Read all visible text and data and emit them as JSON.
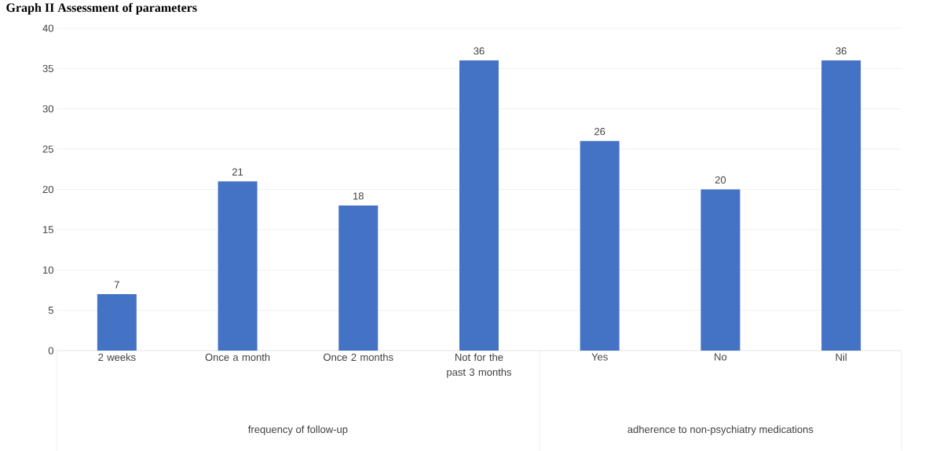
{
  "chart_data": {
    "type": "bar",
    "title": "Graph II Assessment of parameters",
    "categories": [
      "2 weeks",
      "Once a month",
      "Once 2 months",
      "Not for the past 3 months",
      "Yes",
      "No",
      "Nil"
    ],
    "values": [
      7,
      21,
      18,
      36,
      26,
      20,
      36
    ],
    "color": "#4472c4",
    "ylim": [
      0,
      40
    ],
    "yticks": [
      0,
      5,
      10,
      15,
      20,
      25,
      30,
      35,
      40
    ],
    "grid": "y",
    "data_labels": true,
    "annotations": [
      "frequency of follow-up",
      "adherence to non-psychiatry medications"
    ]
  }
}
